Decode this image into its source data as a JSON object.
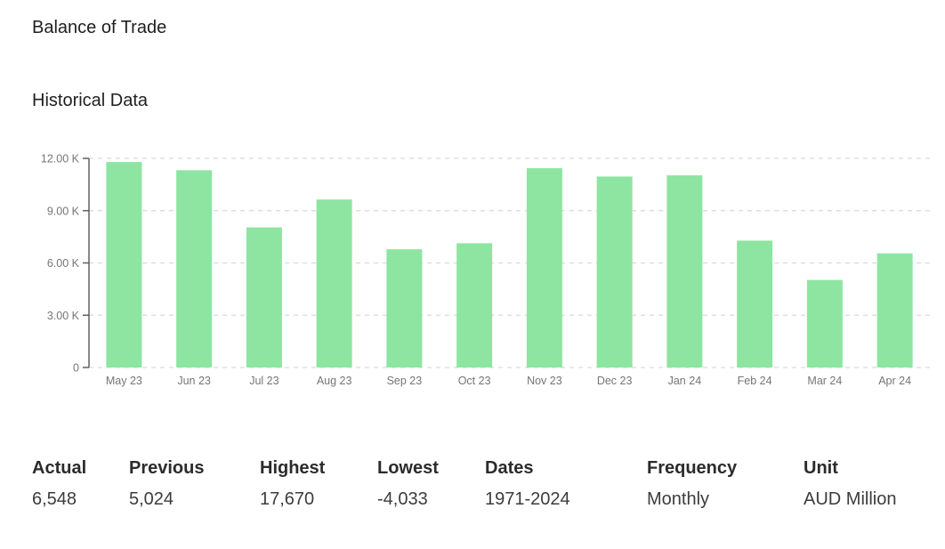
{
  "page": {
    "title": "Balance of Trade",
    "subtitle": "Historical Data"
  },
  "chart_data": {
    "type": "bar",
    "title": "Historical Data",
    "categories": [
      "May 23",
      "Jun 23",
      "Jul 23",
      "Aug 23",
      "Sep 23",
      "Oct 23",
      "Nov 23",
      "Dec 23",
      "Jan 24",
      "Feb 24",
      "Mar 24",
      "Apr 24"
    ],
    "values": [
      11790,
      11321,
      8039,
      9640,
      6785,
      7129,
      11437,
      10959,
      11027,
      7280,
      5024,
      6548
    ],
    "xlabel": "",
    "ylabel": "",
    "ylim": [
      0,
      12000
    ],
    "yticks": [
      {
        "value": 0,
        "label": "0"
      },
      {
        "value": 3000,
        "label": "3.00 K"
      },
      {
        "value": 6000,
        "label": "6.00 K"
      },
      {
        "value": 9000,
        "label": "9.00 K"
      },
      {
        "value": 12000,
        "label": "12.00 K"
      }
    ],
    "grid": true,
    "legend": false,
    "bar_color": "#8de5a1",
    "axis_color": "#616161",
    "grid_color": "#d9d9d9",
    "tick_label_color": "#757575",
    "unit": "AUD Million"
  },
  "summary": {
    "columns": [
      {
        "label": "Actual",
        "value": "6,548"
      },
      {
        "label": "Previous",
        "value": "5,024"
      },
      {
        "label": "Highest",
        "value": "17,670"
      },
      {
        "label": "Lowest",
        "value": "-4,033"
      },
      {
        "label": "Dates",
        "value": "1971-2024"
      },
      {
        "label": "Frequency",
        "value": "Monthly"
      },
      {
        "label": "Unit",
        "value": "AUD Million"
      }
    ]
  }
}
